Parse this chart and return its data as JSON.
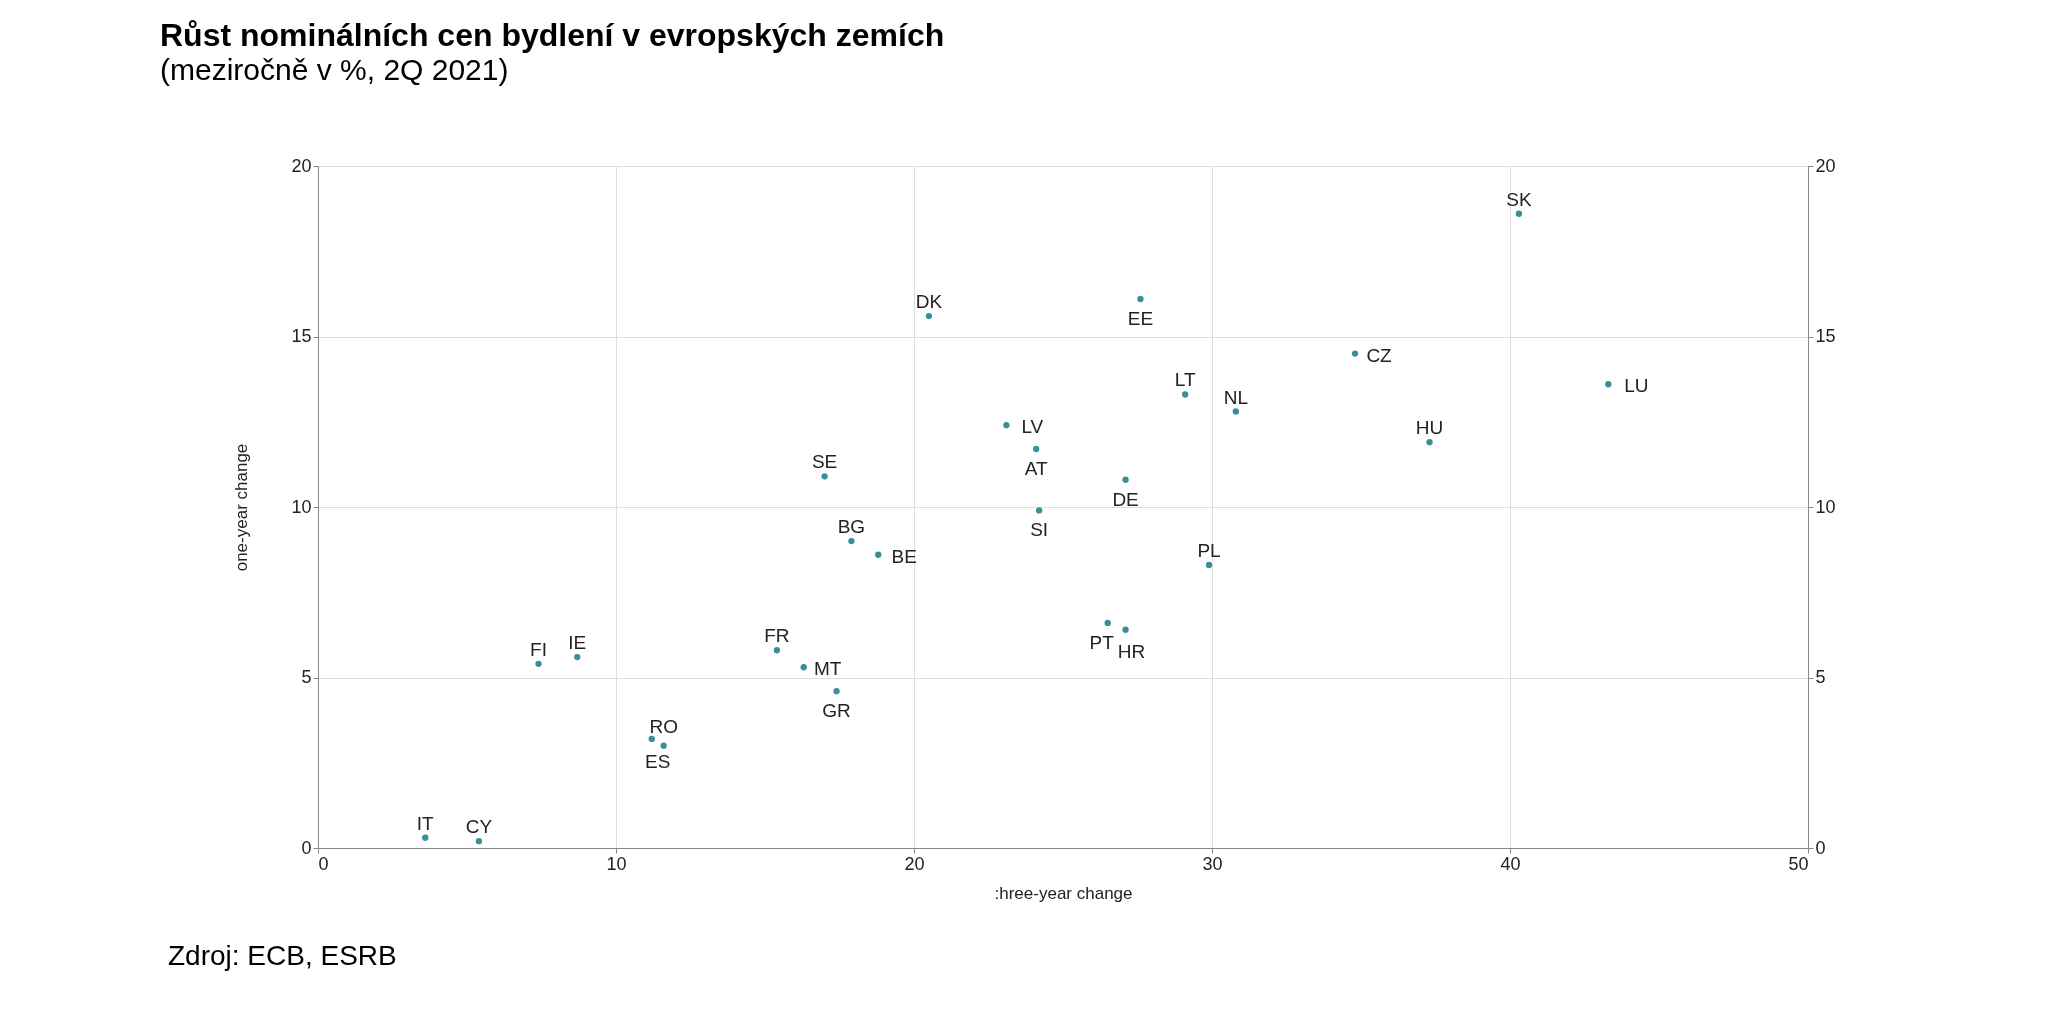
{
  "chart_data": {
    "type": "scatter",
    "title": "Růst nominálních cen bydlení v evropských zemích",
    "subtitle": "(meziročně v %, 2Q 2021)",
    "xlabel": ":hree-year change",
    "ylabel": "one-year change",
    "x": [
      3.6,
      5.4,
      7.4,
      8.7,
      11.2,
      11.6,
      15.4,
      16.3,
      17.4,
      17.0,
      17.9,
      18.8,
      20.5,
      23.1,
      24.1,
      24.2,
      27.6,
      27.1,
      26.5,
      27.1,
      29.9,
      29.1,
      30.8,
      34.8,
      37.3,
      40.3,
      43.3
    ],
    "values": [
      0.3,
      0.2,
      5.4,
      5.6,
      3.2,
      3.0,
      5.8,
      5.3,
      4.6,
      10.9,
      9.0,
      8.6,
      15.6,
      12.4,
      11.7,
      9.9,
      16.1,
      10.8,
      6.6,
      6.4,
      8.3,
      13.3,
      12.8,
      14.5,
      11.9,
      18.6,
      13.6
    ],
    "value_labels": [
      "IT",
      "CY",
      "FI",
      "IE",
      "RO",
      "ES",
      "FR",
      "MT",
      "GR",
      "SE",
      "BG",
      "BE",
      "DK",
      "LV",
      "AT",
      "SI",
      "EE",
      "DE",
      "PT",
      "HR",
      "PL",
      "LT",
      "NL",
      "CZ",
      "HU",
      "SK",
      "LU"
    ],
    "color": "#3a8f96",
    "marker": "circle",
    "xlim": [
      0,
      50
    ],
    "xticks": [
      0,
      10,
      20,
      30,
      40,
      50
    ],
    "ylim": [
      0,
      20
    ],
    "yticks": [
      0,
      5,
      10,
      15,
      20
    ],
    "y2lim": [
      0,
      20
    ],
    "y2ticks": [
      0,
      5,
      10,
      15,
      20
    ],
    "grid": true,
    "annotations": [
      "Zdroj: ECB, ESRB"
    ]
  }
}
